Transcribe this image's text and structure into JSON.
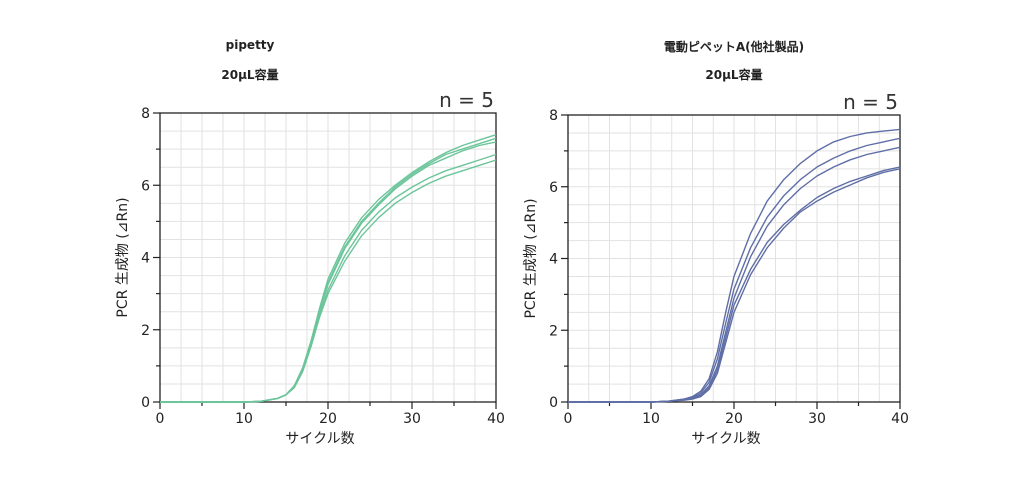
{
  "chart_data": [
    {
      "type": "line",
      "title": "pipetty",
      "subtitle": "20μL容量",
      "annotation": "n = 5",
      "xlabel": "サイクル数",
      "ylabel": "PCR 生成物 (⊿Rn)",
      "xlim": [
        0,
        40
      ],
      "ylim": [
        0,
        8
      ],
      "xticks": [
        0,
        10,
        20,
        30,
        40
      ],
      "yticks": [
        0,
        2,
        4,
        6,
        8
      ],
      "grid": true,
      "line_color": "#6cc59a",
      "series": [
        {
          "x": [
            0,
            5,
            10,
            12,
            14,
            15,
            16,
            17,
            18,
            19,
            20,
            22,
            24,
            26,
            28,
            30,
            32,
            34,
            36,
            38,
            40
          ],
          "values": [
            0,
            0,
            0,
            0.02,
            0.1,
            0.2,
            0.45,
            0.95,
            1.7,
            2.6,
            3.4,
            4.4,
            5.1,
            5.6,
            6.0,
            6.35,
            6.65,
            6.9,
            7.1,
            7.25,
            7.4
          ]
        },
        {
          "x": [
            0,
            5,
            10,
            12,
            14,
            15,
            16,
            17,
            18,
            19,
            20,
            22,
            24,
            26,
            28,
            30,
            32,
            34,
            36,
            38,
            40
          ],
          "values": [
            0,
            0,
            0,
            0.02,
            0.1,
            0.2,
            0.45,
            0.95,
            1.7,
            2.55,
            3.3,
            4.3,
            5.0,
            5.5,
            5.95,
            6.3,
            6.6,
            6.85,
            7.0,
            7.15,
            7.3
          ]
        },
        {
          "x": [
            0,
            5,
            10,
            12,
            14,
            15,
            16,
            17,
            18,
            19,
            20,
            22,
            24,
            26,
            28,
            30,
            32,
            34,
            36,
            38,
            40
          ],
          "values": [
            0,
            0,
            0,
            0.02,
            0.1,
            0.2,
            0.45,
            0.9,
            1.65,
            2.5,
            3.25,
            4.25,
            4.95,
            5.45,
            5.9,
            6.25,
            6.55,
            6.75,
            6.95,
            7.1,
            7.2
          ]
        },
        {
          "x": [
            0,
            5,
            10,
            12,
            14,
            15,
            16,
            17,
            18,
            19,
            20,
            22,
            24,
            26,
            28,
            30,
            32,
            34,
            36,
            38,
            40
          ],
          "values": [
            0,
            0,
            0,
            0.02,
            0.1,
            0.2,
            0.45,
            0.9,
            1.6,
            2.4,
            3.1,
            4.05,
            4.75,
            5.25,
            5.65,
            5.95,
            6.2,
            6.4,
            6.55,
            6.7,
            6.85
          ]
        },
        {
          "x": [
            0,
            5,
            10,
            12,
            14,
            15,
            16,
            17,
            18,
            19,
            20,
            22,
            24,
            26,
            28,
            30,
            32,
            34,
            36,
            38,
            40
          ],
          "values": [
            0,
            0,
            0,
            0.02,
            0.1,
            0.2,
            0.4,
            0.85,
            1.55,
            2.35,
            3.0,
            3.9,
            4.6,
            5.1,
            5.5,
            5.8,
            6.05,
            6.25,
            6.4,
            6.55,
            6.7
          ]
        }
      ]
    },
    {
      "type": "line",
      "title": "電動ピペットA(他社製品)",
      "subtitle": "20μL容量",
      "annotation": "n = 5",
      "xlabel": "サイクル数",
      "ylabel": "PCR 生成物 (⊿Rn)",
      "xlim": [
        0,
        40
      ],
      "ylim": [
        0,
        8
      ],
      "xticks": [
        0,
        10,
        20,
        30,
        40
      ],
      "yticks": [
        0,
        2,
        4,
        6,
        8
      ],
      "grid": true,
      "line_color": "#5f6ea6",
      "series": [
        {
          "x": [
            0,
            5,
            10,
            12,
            14,
            15,
            16,
            17,
            18,
            19,
            20,
            22,
            24,
            26,
            28,
            30,
            32,
            34,
            36,
            38,
            40
          ],
          "values": [
            0,
            0,
            0,
            0.02,
            0.08,
            0.15,
            0.3,
            0.65,
            1.4,
            2.5,
            3.5,
            4.7,
            5.6,
            6.2,
            6.65,
            7.0,
            7.25,
            7.4,
            7.5,
            7.55,
            7.6
          ]
        },
        {
          "x": [
            0,
            5,
            10,
            12,
            14,
            15,
            16,
            17,
            18,
            19,
            20,
            22,
            24,
            26,
            28,
            30,
            32,
            34,
            36,
            38,
            40
          ],
          "values": [
            0,
            0,
            0,
            0.02,
            0.08,
            0.12,
            0.25,
            0.55,
            1.2,
            2.2,
            3.15,
            4.3,
            5.15,
            5.75,
            6.2,
            6.55,
            6.8,
            7.0,
            7.15,
            7.25,
            7.35
          ]
        },
        {
          "x": [
            0,
            5,
            10,
            12,
            14,
            15,
            16,
            17,
            18,
            19,
            20,
            22,
            24,
            26,
            28,
            30,
            32,
            34,
            36,
            38,
            40
          ],
          "values": [
            0,
            0,
            0,
            0.02,
            0.07,
            0.1,
            0.2,
            0.45,
            1.0,
            1.95,
            2.9,
            4.05,
            4.9,
            5.5,
            5.95,
            6.3,
            6.55,
            6.75,
            6.9,
            7.0,
            7.1
          ]
        },
        {
          "x": [
            0,
            5,
            10,
            12,
            14,
            15,
            16,
            17,
            18,
            19,
            20,
            22,
            24,
            26,
            28,
            30,
            32,
            34,
            36,
            38,
            40
          ],
          "values": [
            0,
            0,
            0,
            0.02,
            0.06,
            0.1,
            0.18,
            0.4,
            0.9,
            1.8,
            2.7,
            3.7,
            4.45,
            4.95,
            5.35,
            5.7,
            5.95,
            6.15,
            6.3,
            6.45,
            6.55
          ]
        },
        {
          "x": [
            0,
            5,
            10,
            12,
            14,
            15,
            16,
            17,
            18,
            19,
            20,
            22,
            24,
            26,
            28,
            30,
            32,
            34,
            36,
            38,
            40
          ],
          "values": [
            0,
            0,
            0,
            0.02,
            0.05,
            0.08,
            0.15,
            0.35,
            0.8,
            1.65,
            2.5,
            3.55,
            4.3,
            4.85,
            5.3,
            5.6,
            5.85,
            6.05,
            6.25,
            6.4,
            6.5
          ]
        }
      ]
    }
  ]
}
